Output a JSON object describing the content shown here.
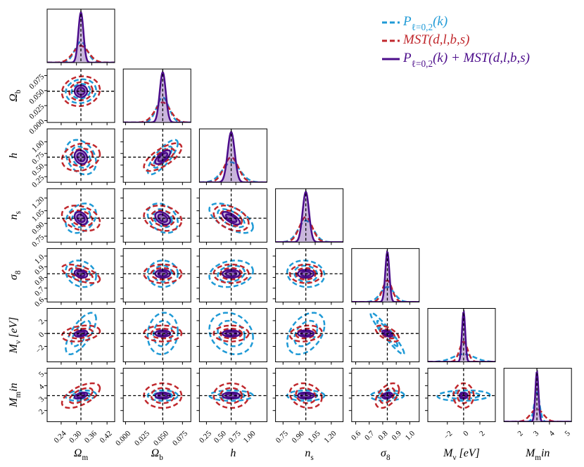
{
  "chart_data": {
    "type": "corner",
    "legend": "upper right",
    "params": [
      {
        "label": "Ω_m",
        "fiducial": 0.3175,
        "lim": [
          0.185,
          0.45
        ],
        "ticks": [
          0.24,
          {
            "value": 0.3,
            "label": "0.30"
          },
          0.36,
          0.42
        ]
      },
      {
        "label": "Ω_b",
        "fiducial": 0.049,
        "lim": [
          -0.003,
          0.086
        ],
        "ticks": [
          {
            "value": 0,
            "label": "0.000"
          },
          0.025,
          {
            "value": 0.05,
            "label": "0.050"
          },
          0.075
        ]
      },
      {
        "label": "h",
        "fiducial": 0.6711,
        "lim": [
          0.13,
          1.28
        ],
        "ticks": [
          0.25,
          {
            "value": 0.5,
            "label": "0.50"
          },
          0.75,
          {
            "value": 1,
            "label": "1.00"
          }
        ]
      },
      {
        "label": "n_s",
        "fiducial": 0.9624,
        "lim": [
          0.68,
          1.31
        ],
        "ticks": [
          0.75,
          {
            "value": 0.9,
            "label": "0.90"
          },
          1.05,
          {
            "value": 1.2,
            "label": "1.20"
          }
        ]
      },
      {
        "label": "σ_8",
        "fiducial": 0.834,
        "lim": [
          0.57,
          1.07
        ],
        "ticks": [
          0.6,
          0.7,
          0.8,
          0.9,
          {
            "value": 1,
            "label": "1.0"
          }
        ]
      },
      {
        "label": "M_ν [eV]",
        "fiducial": 0,
        "lim": [
          -4.4,
          3.9
        ],
        "ticks": [
          {
            "value": -2,
            "label": "−2"
          },
          0,
          2
        ]
      },
      {
        "label": "M_min",
        "fiducial": 3.2,
        "lim": [
          1.1,
          5.4
        ],
        "ticks": [
          2,
          3,
          4,
          5
        ]
      }
    ],
    "series": [
      {
        "name": "P_{ℓ=0,2}(k)",
        "color": "#1f9ad6",
        "linestyle": "dashed",
        "filled": false,
        "sigma": [
          0.024,
          0.008,
          0.15,
          0.07,
          0.05,
          1.3,
          0.17
        ],
        "corr": [
          0.1,
          -0.3,
          0.8,
          0.3,
          -0.3,
          -0.6,
          -0.2,
          0,
          0.2,
          -0.1,
          0.7,
          0.1,
          -0.2,
          0.4,
          -0.95,
          0.2,
          0,
          0,
          0,
          0.1,
          0.1
        ]
      },
      {
        "name": "MST(d,l,b,s)",
        "color": "#c0282d",
        "linestyle": "dashed",
        "filled": false,
        "sigma": [
          0.03,
          0.01,
          0.12,
          0.06,
          0.035,
          0.5,
          0.4
        ],
        "corr": [
          0.1,
          0.2,
          0.7,
          -0.3,
          -0.2,
          -0.4,
          -0.6,
          0,
          0,
          0,
          0.3,
          0,
          0,
          0.2,
          -0.6,
          0.6,
          0,
          0,
          -0.2,
          0.5,
          0
        ]
      },
      {
        "name": "P_{ℓ=0,2}(k) + MST(d,l,b,s)",
        "color": "#4b0c8a",
        "linestyle": "solid",
        "filled": true,
        "sigma": [
          0.01,
          0.004,
          0.06,
          0.03,
          0.015,
          0.2,
          0.1
        ],
        "corr": [
          0,
          -0.2,
          0.7,
          -0.3,
          -0.4,
          -0.7,
          -0.3,
          0,
          0,
          0,
          0.3,
          0,
          0,
          0,
          -0.5,
          0.5,
          0,
          0,
          0,
          0.3,
          0
        ]
      }
    ]
  }
}
